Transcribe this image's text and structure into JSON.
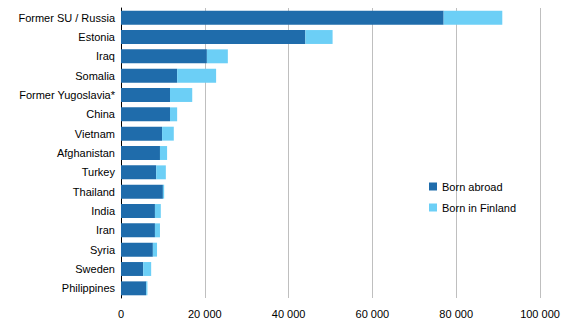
{
  "chart_data": {
    "type": "bar",
    "orientation": "horizontal",
    "stacked": true,
    "grid": true,
    "legend": "right",
    "categories": [
      "Former SU / Russia",
      "Estonia",
      "Iraq",
      "Somalia",
      "Former Yugoslavia*",
      "China",
      "Vietnam",
      "Afghanistan",
      "Turkey",
      "Thailand",
      "India",
      "Iran",
      "Syria",
      "Sweden",
      "Philippines"
    ],
    "series": [
      {
        "name": "Born abroad",
        "color": "#1f6cab",
        "values": [
          77000,
          44000,
          20500,
          13400,
          11700,
          11700,
          9800,
          9300,
          8400,
          10000,
          8100,
          8100,
          7600,
          5300,
          6000
        ]
      },
      {
        "name": "Born in Finland",
        "color": "#6ccff6",
        "values": [
          14000,
          6500,
          5000,
          9300,
          5300,
          1700,
          2800,
          1700,
          2300,
          300,
          1400,
          1200,
          1000,
          1900,
          300
        ]
      }
    ],
    "xlim": [
      0,
      100000
    ],
    "xticks": [
      0,
      {
        "value": 20000,
        "label": "20 000"
      },
      {
        "value": 40000,
        "label": "40 000"
      },
      {
        "value": 60000,
        "label": "60 000"
      },
      {
        "value": 80000,
        "label": "80 000"
      },
      {
        "value": 100000,
        "label": "100 000"
      }
    ]
  }
}
